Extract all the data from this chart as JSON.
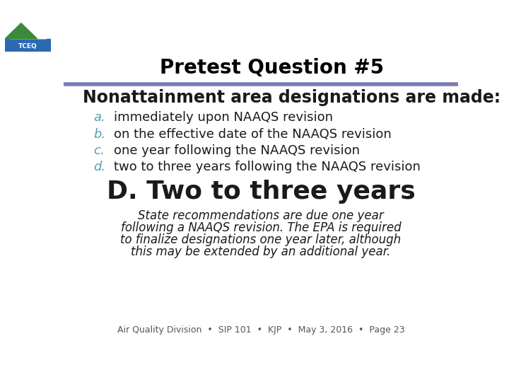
{
  "title": "Pretest Question #5",
  "header_line_color": "#7b7db5",
  "question": "Nonattainment area designations are made:",
  "options_letters": [
    "a.",
    "b.",
    "c.",
    "d."
  ],
  "options_text": [
    "immediately upon NAAQS revision",
    "on the effective date of the NAAQS revision",
    "one year following the NAAQS revision",
    "two to three years following the NAAQS revision"
  ],
  "answer_bold": "D. Two to three years",
  "answer_detail_italic": "State recommendations are due one year\nfollowing a NAAQS revision. The EPA is required\nto finalize designations one year later, although\nthis may be extended by an additional year.",
  "footer": "Air Quality Division  •  SIP 101  •  KJP  •  May 3, 2016  •  Page 23",
  "bg_color": "#ffffff",
  "title_color": "#000000",
  "question_color": "#1a1a1a",
  "letter_color": "#5b9db5",
  "option_color": "#1a1a1a",
  "answer_color": "#1a1a1a",
  "detail_color": "#1a1a1a",
  "footer_color": "#555555",
  "title_fontsize": 20,
  "question_fontsize": 17,
  "option_fontsize": 13,
  "answer_fontsize": 26,
  "detail_fontsize": 12,
  "footer_fontsize": 9
}
